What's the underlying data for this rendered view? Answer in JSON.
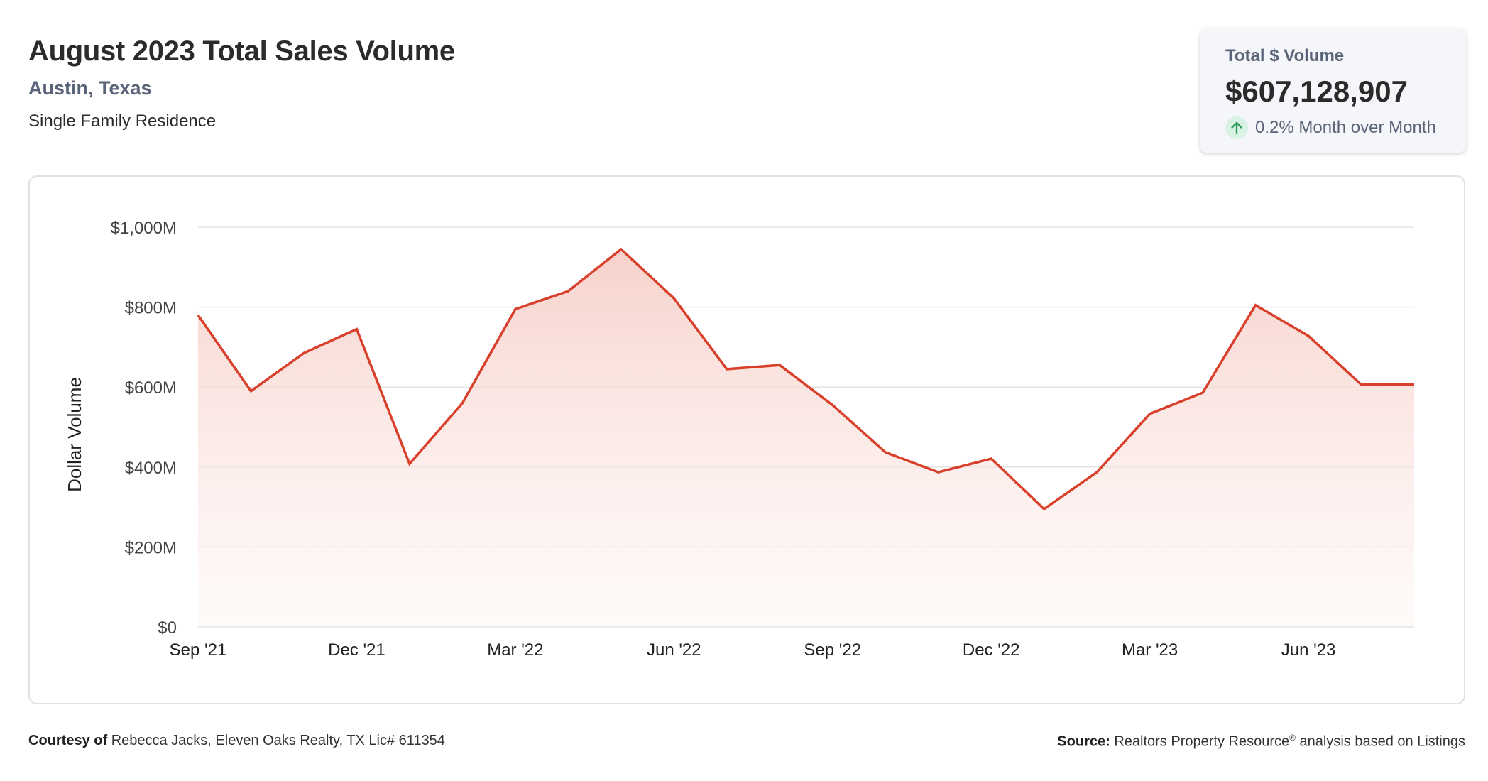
{
  "header": {
    "title": "August 2023 Total Sales Volume",
    "location": "Austin, Texas",
    "property_type": "Single Family Residence"
  },
  "summary": {
    "label": "Total $ Volume",
    "value": "$607,128,907",
    "change": "0.2% Month over Month",
    "change_direction": "up",
    "change_icon": "arrow-up-icon"
  },
  "colors": {
    "line": "#d9402b",
    "fill_top": "#f6cfc8",
    "grid": "#e3e3e3",
    "positive": "#2e9e5b"
  },
  "chart_data": {
    "type": "area",
    "title": "",
    "xlabel": "",
    "ylabel": "Dollar Volume",
    "ylim": [
      0,
      1000
    ],
    "y_unit": "M",
    "y_ticks": [
      0,
      200,
      400,
      600,
      800,
      1000
    ],
    "y_tick_labels": [
      "$0",
      "$200M",
      "$400M",
      "$600M",
      "$800M",
      "$1,000M"
    ],
    "x_tick_labels": [
      "Sep '21",
      "Dec '21",
      "Mar '22",
      "Jun '22",
      "Sep '22",
      "Dec '22",
      "Mar '23",
      "Jun '23"
    ],
    "x_tick_every": 3,
    "grid": true,
    "legend": "none",
    "series": [
      {
        "values": [
          780,
          590,
          685,
          745,
          408,
          560,
          795,
          840,
          945,
          822,
          645,
          655,
          555,
          437,
          387,
          421,
          295,
          387,
          533,
          586,
          805,
          728,
          606,
          607
        ]
      }
    ]
  },
  "footer": {
    "courtesy_label": "Courtesy of",
    "courtesy_text": "Rebecca Jacks, Eleven Oaks Realty, TX Lic# 611354",
    "source_label": "Source:",
    "source_text": "Realtors Property Resource",
    "source_mark": "®",
    "source_suffix": "analysis based on Listings"
  }
}
